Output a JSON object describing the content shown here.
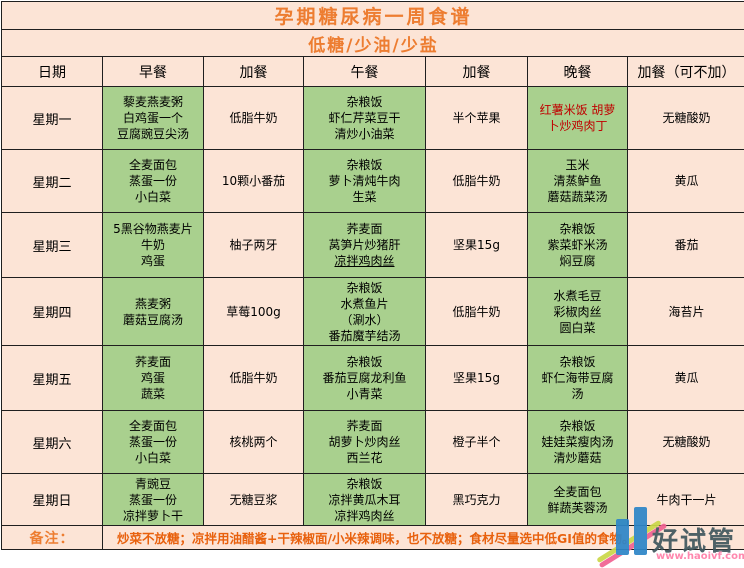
{
  "title": "孕期糖尿病一周食谱",
  "subtitle": "低糖/少油/少盐",
  "columns": [
    "日期",
    "早餐",
    "加餐",
    "午餐",
    "加餐",
    "晚餐",
    "加餐（可不加）"
  ],
  "rows": [
    {
      "day": "星期一",
      "breakfast": [
        "藜麦燕麦粥",
        "白鸡蛋一个",
        "豆腐豌豆尖汤"
      ],
      "snack1": [
        "低脂牛奶"
      ],
      "lunch": [
        "杂粮饭",
        "虾仁芹菜豆干",
        "清炒小油菜"
      ],
      "snack2": [
        "半个苹果"
      ],
      "dinner": [
        "红薯米饭 胡萝",
        "卜炒鸡肉丁"
      ],
      "snack3": [
        "无糖酸奶"
      ]
    },
    {
      "day": "星期二",
      "breakfast": [
        "全麦面包",
        "蒸蛋一份",
        "小白菜"
      ],
      "snack1": [
        "10颗小番茄"
      ],
      "lunch": [
        "杂粮饭",
        "萝卜清炖牛肉",
        "生菜"
      ],
      "snack2": [
        "低脂牛奶"
      ],
      "dinner": [
        "玉米",
        "清蒸鲈鱼",
        "蘑菇蔬菜汤"
      ],
      "snack3": [
        "黄瓜"
      ]
    },
    {
      "day": "星期三",
      "breakfast": [
        "5黑谷物燕麦片",
        "牛奶",
        "鸡蛋"
      ],
      "snack1": [
        "柚子两牙"
      ],
      "lunch": [
        "荞麦面",
        "莴笋片炒猪肝",
        {
          "text": "凉拌鸡肉丝",
          "underline": true
        }
      ],
      "snack2": [
        "坚果15g"
      ],
      "dinner": [
        "杂粮饭",
        "紫菜虾米汤",
        "焖豆腐"
      ],
      "snack3": [
        "番茄"
      ]
    },
    {
      "day": "星期四",
      "breakfast": [
        "燕麦粥",
        "蘑菇豆腐汤"
      ],
      "snack1": [
        "草莓100g"
      ],
      "lunch": [
        "杂粮饭",
        "水煮鱼片",
        "（涮水）",
        "番茄魔芋结汤"
      ],
      "snack2": [
        "低脂牛奶"
      ],
      "dinner": [
        "水煮毛豆",
        "彩椒肉丝",
        "圆白菜"
      ],
      "snack3": [
        "海苔片"
      ]
    },
    {
      "day": "星期五",
      "breakfast": [
        "荞麦面",
        "鸡蛋",
        "蔬菜"
      ],
      "snack1": [
        "低脂牛奶"
      ],
      "lunch": [
        "杂粮饭",
        "番茄豆腐龙利鱼",
        "小青菜"
      ],
      "snack2": [
        "坚果15g"
      ],
      "dinner": [
        "杂粮饭",
        "虾仁海带豆腐",
        "汤"
      ],
      "snack3": [
        "黄瓜"
      ]
    },
    {
      "day": "星期六",
      "breakfast": [
        "全麦面包",
        "蒸蛋一份",
        "小白菜"
      ],
      "snack1": [
        "核桃两个"
      ],
      "lunch": [
        "荞麦面",
        "胡萝卜炒肉丝",
        "西兰花"
      ],
      "snack2": [
        "橙子半个"
      ],
      "dinner": [
        "杂粮饭",
        "娃娃菜瘦肉汤",
        "清炒蘑菇"
      ],
      "snack3": [
        "无糖酸奶"
      ]
    },
    {
      "day": "星期日",
      "breakfast": [
        "青豌豆",
        "蒸蛋一份",
        "凉拌萝卜干"
      ],
      "snack1": [
        "无糖豆浆"
      ],
      "lunch": [
        "杂粮饭",
        "凉拌黄瓜木耳",
        "凉拌鸡肉丝"
      ],
      "snack2": [
        "黑巧克力"
      ],
      "dinner": [
        "全麦面包",
        "鲜蔬芙蓉汤"
      ],
      "snack3": [
        "牛肉干一片"
      ]
    }
  ],
  "note": {
    "label": "备注：",
    "text": "炒菜不放糖；凉拌用油醋酱+干辣椒面/小米辣调味，也不放糖；食材尽量选中低GI值的食物。"
  },
  "watermark": {
    "brand": "好试管",
    "url": "www.haoivf.com"
  },
  "colors": {
    "background_peach": "#fce4d6",
    "cell_green": "#a9d08e",
    "title_orange": "#ed7d31",
    "note_orange": "#e8610e",
    "highlight_red": "#c00000",
    "border": "#1f1f1f",
    "watermark_blue": "#2e86c8",
    "watermark_pink": "#f06292",
    "watermark_brand_text": "#41585e"
  }
}
